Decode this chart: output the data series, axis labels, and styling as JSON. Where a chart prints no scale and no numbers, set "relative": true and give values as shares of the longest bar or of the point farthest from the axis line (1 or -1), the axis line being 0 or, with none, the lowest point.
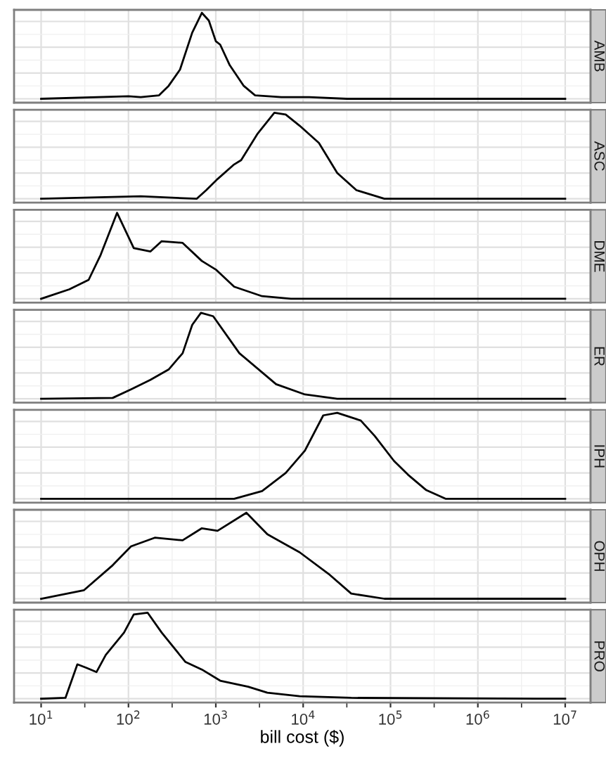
{
  "chart_data": [
    {
      "type": "line",
      "title": "AMB",
      "relative": true,
      "grid": true,
      "tick_labels": false,
      "xlim": [
        4.9,
        19500000
      ],
      "log": "x",
      "series": [
        {
          "color": "#000000",
          "x": [
            10,
            100,
            138,
            224,
            288,
            389,
            537,
            692,
            832,
            1000,
            1122,
            1445,
            2089,
            2818,
            5623,
            11750,
            31620,
            10000000
          ],
          "values": [
            0,
            0.03,
            0.02,
            0.04,
            0.15,
            0.34,
            0.77,
            1,
            0.91,
            0.67,
            0.63,
            0.39,
            0.15,
            0.04,
            0.02,
            0.02,
            0,
            0
          ]
        }
      ]
    },
    {
      "type": "line",
      "title": "ASC",
      "relative": true,
      "grid": true,
      "tick_labels": false,
      "xlim": [
        4.9,
        19500000
      ],
      "log": "x",
      "series": [
        {
          "color": "#000000",
          "x": [
            10,
            138,
            603,
            776,
            1047,
            1622,
            1950,
            3020,
            4677,
            6310,
            9120,
            15140,
            24550,
            40740,
            85110,
            10000000
          ],
          "values": [
            0,
            0.03,
            0,
            0.1,
            0.23,
            0.4,
            0.45,
            0.76,
            1,
            0.98,
            0.85,
            0.65,
            0.3,
            0.1,
            0,
            0
          ]
        }
      ]
    },
    {
      "type": "line",
      "title": "DME",
      "relative": true,
      "grid": true,
      "tick_labels": false,
      "xlim": [
        4.9,
        19500000
      ],
      "log": "x",
      "series": [
        {
          "color": "#000000",
          "x": [
            10,
            21,
            35,
            48,
            74,
            115,
            178,
            240,
            417,
            692,
            1000,
            1622,
            3388,
            7244,
            10000000
          ],
          "values": [
            0,
            0.11,
            0.22,
            0.51,
            1,
            0.59,
            0.55,
            0.67,
            0.65,
            0.44,
            0.34,
            0.14,
            0.03,
            0,
            0
          ]
        }
      ]
    },
    {
      "type": "line",
      "title": "ER",
      "relative": true,
      "grid": true,
      "tick_labels": false,
      "xlim": [
        4.9,
        19500000
      ],
      "log": "x",
      "series": [
        {
          "color": "#000000",
          "x": [
            10,
            66,
            107,
            178,
            288,
            417,
            537,
            676,
            933,
            1862,
            4898,
            10470,
            24550,
            10000000
          ],
          "values": [
            0,
            0.01,
            0.11,
            0.22,
            0.34,
            0.53,
            0.86,
            1,
            0.96,
            0.53,
            0.17,
            0.05,
            0,
            0
          ]
        }
      ]
    },
    {
      "type": "line",
      "title": "IPH",
      "relative": true,
      "grid": true,
      "tick_labels": false,
      "xlim": [
        4.9,
        19500000
      ],
      "log": "x",
      "series": [
        {
          "color": "#000000",
          "x": [
            10,
            1622,
            3388,
            6310,
            10470,
            16980,
            24550,
            45710,
            66070,
            109600,
            158500,
            257000,
            426600,
            10000000
          ],
          "values": [
            0,
            0,
            0.09,
            0.3,
            0.56,
            0.97,
            1,
            0.91,
            0.73,
            0.44,
            0.28,
            0.1,
            0,
            0
          ]
        }
      ]
    },
    {
      "type": "line",
      "title": "OPH",
      "relative": true,
      "grid": true,
      "tick_labels": false,
      "xlim": [
        4.9,
        19500000
      ],
      "log": "x",
      "series": [
        {
          "color": "#000000",
          "x": [
            10,
            31,
            66,
            107,
            200,
            417,
            692,
            1047,
            2239,
            3890,
            9120,
            19500,
            35480,
            85110,
            10000000
          ],
          "values": [
            0,
            0.1,
            0.39,
            0.61,
            0.71,
            0.68,
            0.82,
            0.79,
            1,
            0.75,
            0.54,
            0.29,
            0.06,
            0,
            0
          ]
        }
      ]
    },
    {
      "type": "line",
      "title": "PRO",
      "relative": true,
      "grid": true,
      "tick_labels": "x",
      "xlabel": "bill cost ($)",
      "xlim": [
        4.9,
        19500000
      ],
      "xticks": [
        {
          "value": 10,
          "label": "10$^{1}$"
        },
        {
          "value": 100,
          "label": "10$^{2}$"
        },
        {
          "value": 1000,
          "label": "10$^{3}$"
        },
        {
          "value": 10000,
          "label": "10$^{4}$"
        },
        {
          "value": 100000,
          "label": "10$^{5}$"
        },
        {
          "value": 1000000,
          "label": "10$^{6}$"
        },
        {
          "value": 10000000,
          "label": "10$^{7}$"
        }
      ],
      "log": "x",
      "series": [
        {
          "color": "#000000",
          "x": [
            10,
            19,
            26,
            33,
            43,
            55,
            89,
            115,
            166,
            240,
            447,
            692,
            1122,
            2344,
            3890,
            9120,
            35480,
            10000000
          ],
          "values": [
            0,
            0.01,
            0.4,
            0.36,
            0.31,
            0.51,
            0.77,
            0.98,
            1,
            0.77,
            0.43,
            0.34,
            0.21,
            0.14,
            0.07,
            0.03,
            0.01,
            0
          ]
        }
      ]
    }
  ]
}
